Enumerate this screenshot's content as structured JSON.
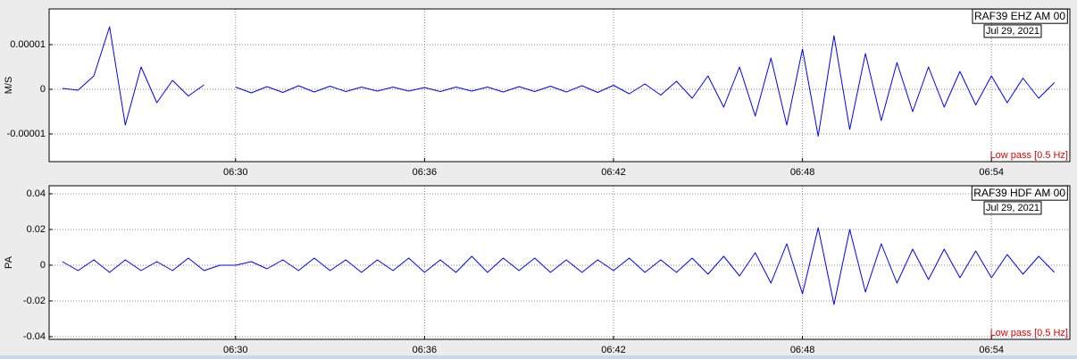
{
  "chart_data": [
    {
      "type": "line",
      "ylabel": "M/S",
      "station": "RAF39 EHZ AM 00",
      "date": "Jul 29, 2021",
      "filter": "Low pass [0.5 Hz]",
      "color": "#0000ff",
      "grid": true,
      "xlim": [
        24.08,
        56.49
      ],
      "xticks": [
        {
          "value": 30,
          "label": "06:30"
        },
        {
          "value": 36,
          "label": "06:36"
        },
        {
          "value": 42,
          "label": "06:42"
        },
        {
          "value": 48,
          "label": "06:48"
        },
        {
          "value": 54,
          "label": "06:54"
        }
      ],
      "ylim": [
        -1.62e-05,
        1.8e-05
      ],
      "yticks": [
        {
          "value": 1e-05,
          "label": "0.00001"
        },
        0,
        {
          "value": -1e-05,
          "label": "-0.00001"
        }
      ],
      "x": [
        24.5,
        25,
        25.5,
        26,
        26.5,
        27,
        27.5,
        28,
        28.5,
        29,
        29.5,
        30,
        30.5,
        31,
        31.5,
        32,
        32.5,
        33,
        33.5,
        34,
        34.5,
        35,
        35.5,
        36,
        36.5,
        37,
        37.5,
        38,
        38.5,
        39,
        39.5,
        40,
        40.5,
        41,
        41.5,
        42,
        42.5,
        43,
        43.5,
        44,
        44.5,
        45,
        45.5,
        46,
        46.5,
        47,
        47.5,
        48,
        48.5,
        49,
        49.5,
        50,
        50.5,
        51,
        51.5,
        52,
        52.5,
        53,
        53.5,
        54,
        54.5,
        55,
        55.5,
        56
      ],
      "values": [
        2e-07,
        -2e-07,
        3e-06,
        1.4e-05,
        -8e-06,
        5e-06,
        -3e-06,
        2e-06,
        -1.5e-06,
        1e-06,
        null,
        5e-07,
        -8e-07,
        6e-07,
        -7e-07,
        8e-07,
        -6e-07,
        7e-07,
        -5e-07,
        5e-07,
        -4e-07,
        5e-07,
        -4e-07,
        4e-07,
        -5e-07,
        5e-07,
        -4e-07,
        5e-07,
        -6e-07,
        6e-07,
        -5e-07,
        7e-07,
        -6e-07,
        8e-07,
        -7e-07,
        9e-07,
        -1e-06,
        1.2e-06,
        -1.3e-06,
        1.8e-06,
        -2e-06,
        3e-06,
        -4e-06,
        5e-06,
        -6e-06,
        7e-06,
        -8e-06,
        9e-06,
        -1.05e-05,
        1.2e-05,
        -9e-06,
        8e-06,
        -7e-06,
        6e-06,
        -5e-06,
        5e-06,
        -4e-06,
        4e-06,
        -3.5e-06,
        3e-06,
        -3e-06,
        2.5e-06,
        -2e-06,
        1.5e-06
      ]
    },
    {
      "type": "line",
      "ylabel": "PA",
      "station": "RAF39 HDF AM 00",
      "date": "Jul 29, 2021",
      "filter": "Low pass [0.5 Hz]",
      "color": "#0000ff",
      "grid": true,
      "xlim": [
        24.08,
        56.49
      ],
      "xticks": [
        {
          "value": 30,
          "label": "06:30"
        },
        {
          "value": 36,
          "label": "06:36"
        },
        {
          "value": 42,
          "label": "06:42"
        },
        {
          "value": 48,
          "label": "06:48"
        },
        {
          "value": 54,
          "label": "06:54"
        }
      ],
      "ylim": [
        -0.0415,
        0.0445
      ],
      "yticks": [
        0.04,
        0.02,
        0,
        -0.02,
        -0.04
      ],
      "x": [
        24.5,
        25,
        25.5,
        26,
        26.5,
        27,
        27.5,
        28,
        28.5,
        29,
        29.5,
        30,
        30.5,
        31,
        31.5,
        32,
        32.5,
        33,
        33.5,
        34,
        34.5,
        35,
        35.5,
        36,
        36.5,
        37,
        37.5,
        38,
        38.5,
        39,
        39.5,
        40,
        40.5,
        41,
        41.5,
        42,
        42.5,
        43,
        43.5,
        44,
        44.5,
        45,
        45.5,
        46,
        46.5,
        47,
        47.5,
        48,
        48.5,
        49,
        49.5,
        50,
        50.5,
        51,
        51.5,
        52,
        52.5,
        53,
        53.5,
        54,
        54.5,
        55,
        55.5,
        56
      ],
      "values": [
        0.002,
        -0.003,
        0.003,
        -0.004,
        0.003,
        -0.003,
        0.002,
        -0.003,
        0.004,
        -0.003,
        0,
        0,
        0.002,
        -0.002,
        0.003,
        -0.003,
        0.004,
        -0.003,
        0.003,
        -0.004,
        0.003,
        -0.003,
        0.004,
        -0.004,
        0.003,
        -0.004,
        0.005,
        -0.004,
        0.004,
        -0.003,
        0.004,
        -0.004,
        0.003,
        -0.004,
        0.003,
        -0.003,
        0.004,
        -0.004,
        0.003,
        -0.004,
        0.004,
        -0.005,
        0.005,
        -0.006,
        0.007,
        -0.01,
        0.012,
        -0.016,
        0.021,
        -0.022,
        0.02,
        -0.015,
        0.012,
        -0.01,
        0.009,
        -0.008,
        0.009,
        -0.007,
        0.008,
        -0.007,
        0.006,
        -0.005,
        0.005,
        -0.004
      ]
    }
  ]
}
